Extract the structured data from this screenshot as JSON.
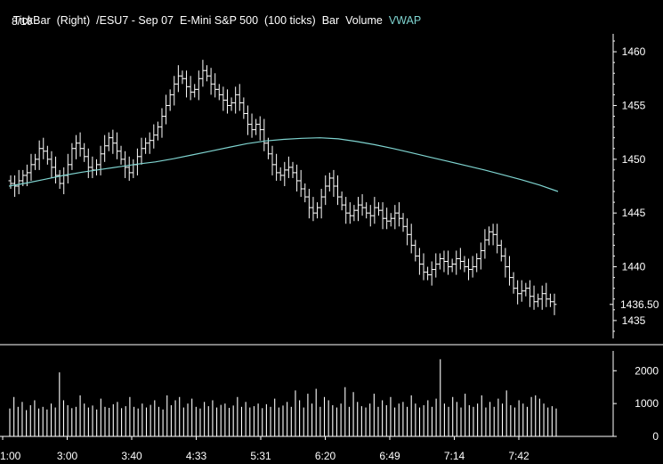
{
  "header": {
    "items": [
      "TickBar",
      "(Right)",
      "/ESU7 - Sep 07",
      "E-Mini S&P 500",
      "(100 ticks)",
      "Bar",
      "Volume"
    ],
    "vwap_label": "VWAP",
    "date": "8/10"
  },
  "colors": {
    "background": "#000000",
    "bars": "#ffffff",
    "vwap": "#7fd4d0",
    "axis": "#ffffff"
  },
  "chart_data": [
    {
      "type": "bar",
      "subtype": "ohlc",
      "title": "",
      "instrument": "/ESU7 - Sep 07 E-Mini S&P 500",
      "ylim": [
        1433.5,
        1461.5
      ],
      "y_ticks": [
        1435,
        1440,
        1445,
        1450,
        1455,
        1460
      ],
      "last_price_label": "1436.50",
      "x_ticks": [
        "1:00",
        "3:00",
        "3:40",
        "4:33",
        "5:31",
        "6:20",
        "6:49",
        "7:14",
        "7:42"
      ],
      "close_path": [
        1447.75,
        1447.5,
        1448.0,
        1448.5,
        1448.75,
        1449.5,
        1450.0,
        1451.0,
        1450.75,
        1450.0,
        1449.25,
        1448.5,
        1447.75,
        1448.5,
        1449.5,
        1451.0,
        1451.5,
        1451.0,
        1450.25,
        1449.25,
        1449.0,
        1449.5,
        1450.5,
        1451.25,
        1452.0,
        1451.5,
        1450.75,
        1450.0,
        1449.25,
        1448.75,
        1449.5,
        1450.25,
        1451.0,
        1451.5,
        1451.75,
        1452.25,
        1453.0,
        1454.0,
        1455.0,
        1456.0,
        1457.0,
        1457.75,
        1457.5,
        1456.75,
        1456.25,
        1456.5,
        1457.5,
        1458.25,
        1457.75,
        1457.0,
        1456.5,
        1456.0,
        1455.5,
        1455.0,
        1455.25,
        1456.0,
        1455.25,
        1454.25,
        1453.25,
        1452.75,
        1453.25,
        1452.75,
        1451.5,
        1450.5,
        1449.5,
        1448.75,
        1448.5,
        1449.0,
        1449.25,
        1448.75,
        1448.0,
        1447.25,
        1446.5,
        1445.5,
        1445.0,
        1445.5,
        1446.5,
        1447.5,
        1448.25,
        1447.5,
        1446.5,
        1445.75,
        1445.0,
        1444.75,
        1445.25,
        1445.75,
        1445.5,
        1445.0,
        1444.75,
        1445.5,
        1445.25,
        1444.5,
        1444.25,
        1444.5,
        1445.0,
        1444.5,
        1443.75,
        1443.0,
        1442.0,
        1441.0,
        1440.25,
        1439.5,
        1439.25,
        1439.75,
        1440.25,
        1440.75,
        1440.5,
        1440.0,
        1440.25,
        1440.75,
        1440.5,
        1440.0,
        1439.75,
        1440.0,
        1440.75,
        1441.5,
        1442.5,
        1443.25,
        1443.0,
        1442.0,
        1441.0,
        1440.0,
        1439.0,
        1438.0,
        1437.5,
        1437.75,
        1438.0,
        1437.25,
        1436.75,
        1437.0,
        1437.5,
        1437.0,
        1436.75,
        1436.5
      ],
      "vwap": [
        1447.5,
        1447.8,
        1448.15,
        1448.5,
        1448.8,
        1449.05,
        1449.3,
        1449.55,
        1449.75,
        1450.05,
        1450.4,
        1450.75,
        1451.1,
        1451.45,
        1451.7,
        1451.85,
        1451.95,
        1452.0,
        1451.9,
        1451.65,
        1451.35,
        1451.0,
        1450.6,
        1450.2,
        1449.8,
        1449.4,
        1449.0,
        1448.55,
        1448.1,
        1447.6,
        1447.0
      ],
      "volume": {
        "ylim": [
          0,
          2550
        ],
        "y_ticks": [
          0,
          1000,
          2000
        ],
        "values": [
          850,
          1200,
          900,
          1050,
          800,
          950,
          1100,
          850,
          900,
          820,
          1000,
          880,
          1950,
          1100,
          950,
          860,
          900,
          1250,
          1000,
          880,
          940,
          820,
          1150,
          900,
          870,
          980,
          1050,
          860,
          920,
          1200,
          900,
          850,
          1000,
          880,
          960,
          1100,
          900,
          820,
          1250,
          950,
          1100,
          1200,
          880,
          1000,
          1150,
          900,
          850,
          1050,
          920,
          1100,
          880,
          960,
          1000,
          870,
          940,
          1200,
          900,
          1050,
          880,
          920,
          1000,
          860,
          980,
          900,
          1150,
          880,
          940,
          1050,
          900,
          1400,
          1100,
          880,
          1300,
          1000,
          1450,
          900,
          1200,
          1100,
          950,
          880,
          1000,
          1500,
          900,
          1350,
          1050,
          920,
          880,
          1000,
          1300,
          900,
          1100,
          950,
          1200,
          880,
          1000,
          1050,
          900,
          1250,
          1000,
          880,
          950,
          1100,
          900,
          1150,
          2350,
          1000,
          900,
          1200,
          1050,
          880,
          1300,
          950,
          900,
          1000,
          1250,
          880,
          1050,
          900,
          1150,
          1000,
          1400,
          950,
          880,
          1100,
          1000,
          900,
          1200,
          1250,
          1150,
          1000,
          880,
          920,
          850
        ]
      }
    }
  ]
}
